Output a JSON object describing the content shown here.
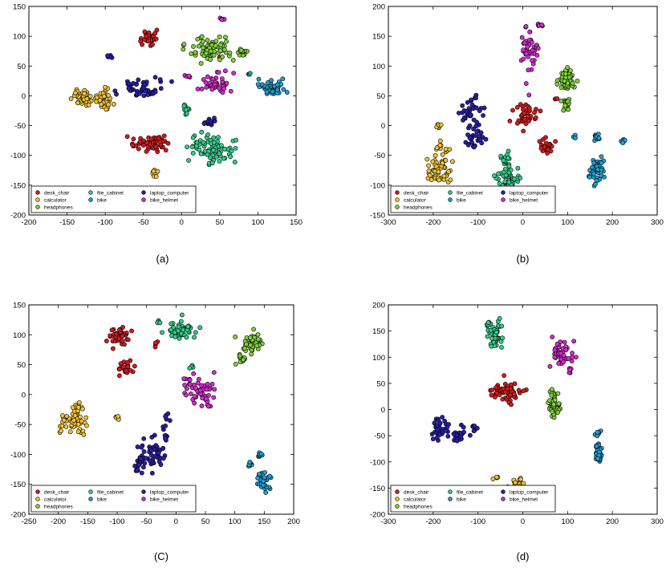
{
  "figure": {
    "legend_entries": [
      {
        "name": "desk_chair",
        "color": "#d7191c"
      },
      {
        "name": "calculator",
        "color": "#f2c230"
      },
      {
        "name": "headphones",
        "color": "#7fd13b"
      },
      {
        "name": "file_cabinet",
        "color": "#2ecf8a"
      },
      {
        "name": "bike",
        "color": "#1f9fd4"
      },
      {
        "name": "laptop_computer",
        "color": "#2a1fa6"
      },
      {
        "name": "bike_helmet",
        "color": "#d62ad0"
      }
    ]
  },
  "chart_data": [
    {
      "type": "scatter",
      "caption": "(a)",
      "xlim": [
        -200,
        150
      ],
      "ylim": [
        -200,
        150
      ],
      "xticks": [
        -200,
        -150,
        -100,
        -50,
        0,
        50,
        100,
        150
      ],
      "yticks": [
        -200,
        -150,
        -100,
        -50,
        0,
        50,
        100,
        150
      ],
      "legend": "lower-left",
      "grid": false,
      "series": [
        {
          "name": "desk_chair",
          "clusters": [
            {
              "cx": -43,
              "cy": 98,
              "sx": 6,
              "sy": 6,
              "n": 30
            },
            {
              "cx": -42,
              "cy": -80,
              "sx": 13,
              "sy": 6,
              "n": 55
            },
            {
              "cx": 50,
              "cy": 62,
              "sx": 2,
              "sy": 2,
              "n": 2
            }
          ]
        },
        {
          "name": "calculator",
          "clusters": [
            {
              "cx": -128,
              "cy": -3,
              "sx": 8,
              "sy": 6,
              "n": 40
            },
            {
              "cx": -100,
              "cy": -5,
              "sx": 6,
              "sy": 8,
              "n": 32
            },
            {
              "cx": -35,
              "cy": -130,
              "sx": 2,
              "sy": 4,
              "n": 8
            }
          ]
        },
        {
          "name": "headphones",
          "clusters": [
            {
              "cx": 38,
              "cy": 78,
              "sx": 14,
              "sy": 9,
              "n": 80
            },
            {
              "cx": 80,
              "cy": 72,
              "sx": 3,
              "sy": 5,
              "n": 14
            }
          ]
        },
        {
          "name": "file_cabinet",
          "clusters": [
            {
              "cx": 40,
              "cy": -88,
              "sx": 14,
              "sy": 12,
              "n": 75
            },
            {
              "cx": 6,
              "cy": -24,
              "sx": 2,
              "sy": 4,
              "n": 10
            }
          ]
        },
        {
          "name": "bike",
          "clusters": [
            {
              "cx": 120,
              "cy": 14,
              "sx": 10,
              "sy": 6,
              "n": 45
            },
            {
              "cx": 88,
              "cy": 36,
              "sx": 2,
              "sy": 1,
              "n": 3
            }
          ]
        },
        {
          "name": "laptop_computer",
          "clusters": [
            {
              "cx": -55,
              "cy": 12,
              "sx": 14,
              "sy": 8,
              "n": 45
            },
            {
              "cx": 36,
              "cy": -44,
              "sx": 4,
              "sy": 4,
              "n": 14
            },
            {
              "cx": -95,
              "cy": 66,
              "sx": 2,
              "sy": 1,
              "n": 6
            },
            {
              "cx": -35,
              "cy": 6,
              "sx": 3,
              "sy": 2,
              "n": 6
            }
          ]
        },
        {
          "name": "bike_helmet",
          "clusters": [
            {
              "cx": 45,
              "cy": 22,
              "sx": 10,
              "sy": 8,
              "n": 40
            },
            {
              "cx": 53,
              "cy": 129,
              "sx": 2,
              "sy": 1,
              "n": 4
            },
            {
              "cx": 8,
              "cy": 33,
              "sx": 2,
              "sy": 1,
              "n": 4
            }
          ]
        }
      ]
    },
    {
      "type": "scatter",
      "caption": "(b)",
      "xlim": [
        -300,
        300
      ],
      "ylim": [
        -150,
        200
      ],
      "xticks": [
        -300,
        -200,
        -100,
        0,
        100,
        200,
        300
      ],
      "yticks": [
        -150,
        -100,
        -50,
        0,
        50,
        100,
        150,
        200
      ],
      "legend": "lower-left",
      "grid": false,
      "series": [
        {
          "name": "desk_chair",
          "clusters": [
            {
              "cx": 8,
              "cy": 15,
              "sx": 12,
              "sy": 10,
              "n": 35
            },
            {
              "cx": 55,
              "cy": -35,
              "sx": 8,
              "sy": 7,
              "n": 25
            },
            {
              "cx": 75,
              "cy": 45,
              "sx": 2,
              "sy": 2,
              "n": 3
            }
          ]
        },
        {
          "name": "calculator",
          "clusters": [
            {
              "cx": -185,
              "cy": -75,
              "sx": 12,
              "sy": 12,
              "n": 50
            },
            {
              "cx": -180,
              "cy": -40,
              "sx": 8,
              "sy": 6,
              "n": 14
            },
            {
              "cx": -188,
              "cy": -2,
              "sx": 3,
              "sy": 3,
              "n": 6
            }
          ]
        },
        {
          "name": "headphones",
          "clusters": [
            {
              "cx": 100,
              "cy": 75,
              "sx": 10,
              "sy": 10,
              "n": 55
            },
            {
              "cx": 95,
              "cy": 35,
              "sx": 6,
              "sy": 6,
              "n": 15
            }
          ]
        },
        {
          "name": "file_cabinet",
          "clusters": [
            {
              "cx": -35,
              "cy": -90,
              "sx": 14,
              "sy": 12,
              "n": 50
            },
            {
              "cx": -35,
              "cy": -60,
              "sx": 10,
              "sy": 8,
              "n": 15
            }
          ]
        },
        {
          "name": "bike",
          "clusters": [
            {
              "cx": 165,
              "cy": -80,
              "sx": 8,
              "sy": 12,
              "n": 40
            },
            {
              "cx": 165,
              "cy": -20,
              "sx": 4,
              "sy": 4,
              "n": 10
            },
            {
              "cx": 225,
              "cy": -27,
              "sx": 2,
              "sy": 2,
              "n": 6
            },
            {
              "cx": 115,
              "cy": -18,
              "sx": 2,
              "sy": 2,
              "n": 3
            }
          ]
        },
        {
          "name": "laptop_computer",
          "clusters": [
            {
              "cx": -120,
              "cy": 20,
              "sx": 14,
              "sy": 18,
              "n": 40
            },
            {
              "cx": -105,
              "cy": -25,
              "sx": 12,
              "sy": 7,
              "n": 25
            }
          ]
        },
        {
          "name": "bike_helmet",
          "clusters": [
            {
              "cx": 15,
              "cy": 130,
              "sx": 12,
              "sy": 20,
              "n": 45
            },
            {
              "cx": 38,
              "cy": 168,
              "sx": 3,
              "sy": 2,
              "n": 6
            }
          ]
        }
      ]
    },
    {
      "type": "scatter",
      "caption": "(C)",
      "xlim": [
        -250,
        200
      ],
      "ylim": [
        -200,
        150
      ],
      "xticks": [
        -250,
        -200,
        -150,
        -100,
        -50,
        0,
        50,
        100,
        150,
        200
      ],
      "yticks": [
        -200,
        -150,
        -100,
        -50,
        0,
        50,
        100,
        150
      ],
      "legend": "lower-left",
      "grid": false,
      "series": [
        {
          "name": "desk_chair",
          "clusters": [
            {
              "cx": -95,
              "cy": 98,
              "sx": 10,
              "sy": 8,
              "n": 40
            },
            {
              "cx": -85,
              "cy": 45,
              "sx": 6,
              "sy": 6,
              "n": 22
            },
            {
              "cx": -35,
              "cy": 84,
              "sx": 2,
              "sy": 3,
              "n": 4
            }
          ]
        },
        {
          "name": "calculator",
          "clusters": [
            {
              "cx": -175,
              "cy": -50,
              "sx": 12,
              "sy": 10,
              "n": 45
            },
            {
              "cx": -168,
              "cy": -22,
              "sx": 5,
              "sy": 6,
              "n": 12
            },
            {
              "cx": -100,
              "cy": -38,
              "sx": 2,
              "sy": 2,
              "n": 5
            }
          ]
        },
        {
          "name": "headphones",
          "clusters": [
            {
              "cx": 130,
              "cy": 88,
              "sx": 10,
              "sy": 8,
              "n": 45
            },
            {
              "cx": 110,
              "cy": 60,
              "sx": 5,
              "sy": 4,
              "n": 14
            }
          ]
        },
        {
          "name": "file_cabinet",
          "clusters": [
            {
              "cx": 10,
              "cy": 108,
              "sx": 14,
              "sy": 7,
              "n": 45
            },
            {
              "cx": -30,
              "cy": 122,
              "sx": 2,
              "sy": 2,
              "n": 4
            },
            {
              "cx": 25,
              "cy": 48,
              "sx": 2,
              "sy": 2,
              "n": 4
            }
          ]
        },
        {
          "name": "bike",
          "clusters": [
            {
              "cx": 148,
              "cy": -145,
              "sx": 6,
              "sy": 8,
              "n": 35
            },
            {
              "cx": 143,
              "cy": -102,
              "sx": 3,
              "sy": 3,
              "n": 8
            },
            {
              "cx": 128,
              "cy": -115,
              "sx": 3,
              "sy": 3,
              "n": 8
            }
          ]
        },
        {
          "name": "laptop_computer",
          "clusters": [
            {
              "cx": -40,
              "cy": -100,
              "sx": 12,
              "sy": 16,
              "n": 45
            },
            {
              "cx": -65,
              "cy": -120,
              "sx": 3,
              "sy": 7,
              "n": 14
            },
            {
              "cx": -15,
              "cy": -60,
              "sx": 4,
              "sy": 12,
              "n": 14
            }
          ]
        },
        {
          "name": "bike_helmet",
          "clusters": [
            {
              "cx": 45,
              "cy": 5,
              "sx": 12,
              "sy": 12,
              "n": 45
            },
            {
              "cx": 20,
              "cy": 20,
              "sx": 4,
              "sy": 5,
              "n": 8
            }
          ]
        }
      ]
    },
    {
      "type": "scatter",
      "caption": "(d)",
      "xlim": [
        -300,
        300
      ],
      "ylim": [
        -200,
        200
      ],
      "xticks": [
        -300,
        -200,
        -100,
        0,
        100,
        200,
        300
      ],
      "yticks": [
        -200,
        -150,
        -100,
        -50,
        0,
        50,
        100,
        150,
        200
      ],
      "legend": "lower-left",
      "grid": false,
      "series": [
        {
          "name": "desk_chair",
          "clusters": [
            {
              "cx": -30,
              "cy": 35,
              "sx": 14,
              "sy": 10,
              "n": 55
            },
            {
              "cx": -60,
              "cy": 35,
              "sx": 5,
              "sy": 5,
              "n": 12
            }
          ]
        },
        {
          "name": "calculator",
          "clusters": [
            {
              "cx": -10,
              "cy": -145,
              "sx": 8,
              "sy": 8,
              "n": 30
            },
            {
              "cx": -60,
              "cy": -130,
              "sx": 4,
              "sy": 2,
              "n": 6
            }
          ]
        },
        {
          "name": "headphones",
          "clusters": [
            {
              "cx": 70,
              "cy": 2,
              "sx": 8,
              "sy": 8,
              "n": 45
            },
            {
              "cx": 70,
              "cy": 25,
              "sx": 5,
              "sy": 6,
              "n": 12
            }
          ]
        },
        {
          "name": "file_cabinet",
          "clusters": [
            {
              "cx": -60,
              "cy": 140,
              "sx": 8,
              "sy": 12,
              "n": 50
            },
            {
              "cx": -75,
              "cy": 165,
              "sx": 3,
              "sy": 3,
              "n": 6
            }
          ]
        },
        {
          "name": "bike",
          "clusters": [
            {
              "cx": 170,
              "cy": -85,
              "sx": 4,
              "sy": 8,
              "n": 35
            },
            {
              "cx": 168,
              "cy": -45,
              "sx": 3,
              "sy": 3,
              "n": 8
            },
            {
              "cx": 165,
              "cy": -70,
              "sx": 2,
              "sy": 2,
              "n": 4
            }
          ]
        },
        {
          "name": "laptop_computer",
          "clusters": [
            {
              "cx": -185,
              "cy": -35,
              "sx": 10,
              "sy": 10,
              "n": 35
            },
            {
              "cx": -140,
              "cy": -50,
              "sx": 10,
              "sy": 8,
              "n": 25
            },
            {
              "cx": -105,
              "cy": -35,
              "sx": 6,
              "sy": 3,
              "n": 8
            }
          ]
        },
        {
          "name": "bike_helmet",
          "clusters": [
            {
              "cx": 85,
              "cy": 110,
              "sx": 12,
              "sy": 10,
              "n": 45
            },
            {
              "cx": 105,
              "cy": 75,
              "sx": 2,
              "sy": 3,
              "n": 6
            }
          ]
        }
      ]
    }
  ]
}
